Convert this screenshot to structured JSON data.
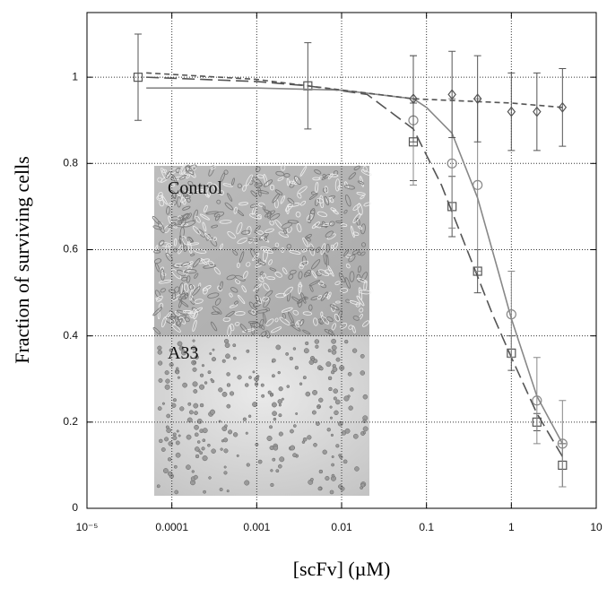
{
  "chart_data": {
    "type": "scatter",
    "x_label": "[scFv] (µM)",
    "y_label": "Fraction of surviving cells",
    "xlim": [
      1e-05,
      10
    ],
    "ylim": [
      0,
      1.15
    ],
    "xscale": "log",
    "xticks": [
      {
        "value": 1e-05,
        "label": "10⁻⁵"
      },
      0.0001,
      0.001,
      0.01,
      0.1,
      1,
      10
    ],
    "yticks": [
      0,
      0.2,
      0.4,
      0.6,
      0.8,
      1
    ],
    "grid": true,
    "inset_labels": [
      "Control",
      "A33"
    ],
    "series": [
      {
        "marker": "square",
        "color": "#555555",
        "x": [
          4e-05,
          0.004,
          0.07,
          0.2,
          0.4,
          1,
          2,
          4
        ],
        "values": [
          1.0,
          0.98,
          0.85,
          0.7,
          0.55,
          0.36,
          0.2,
          0.1
        ],
        "errors": [
          0.1,
          0.1,
          0.09,
          0.07,
          0.05,
          0.04,
          0.02,
          0.05
        ],
        "fit": {
          "dash": "long",
          "x": [
            5e-05,
            0.001,
            0.004,
            0.02,
            0.07,
            0.15,
            0.3,
            0.6,
            1,
            2,
            4
          ],
          "values": [
            1.0,
            0.99,
            0.98,
            0.96,
            0.88,
            0.75,
            0.6,
            0.45,
            0.35,
            0.22,
            0.12
          ]
        }
      },
      {
        "marker": "circle",
        "color": "#888888",
        "x": [
          0.07,
          0.2,
          0.4,
          1,
          2,
          4
        ],
        "values": [
          0.9,
          0.8,
          0.75,
          0.45,
          0.25,
          0.15
        ],
        "errors": [
          0.15,
          0.15,
          0.2,
          0.1,
          0.1,
          0.1
        ],
        "fit": {
          "dash": "solid",
          "x": [
            5e-05,
            0.001,
            0.01,
            0.07,
            0.1,
            0.2,
            0.4,
            0.7,
            1,
            2,
            4
          ],
          "values": [
            0.975,
            0.975,
            0.97,
            0.95,
            0.93,
            0.87,
            0.72,
            0.55,
            0.44,
            0.26,
            0.15
          ]
        }
      },
      {
        "marker": "diamond",
        "color": "#555555",
        "x": [
          0.07,
          0.2,
          0.4,
          1,
          2,
          4
        ],
        "values": [
          0.95,
          0.96,
          0.95,
          0.92,
          0.92,
          0.93
        ],
        "errors": [
          0.1,
          0.1,
          0.1,
          0.09,
          0.09,
          0.09
        ],
        "fit": {
          "dash": "short",
          "x": [
            5e-05,
            0.001,
            0.004,
            0.07,
            1,
            4
          ],
          "values": [
            1.01,
            0.995,
            0.98,
            0.95,
            0.94,
            0.93
          ]
        }
      }
    ]
  }
}
